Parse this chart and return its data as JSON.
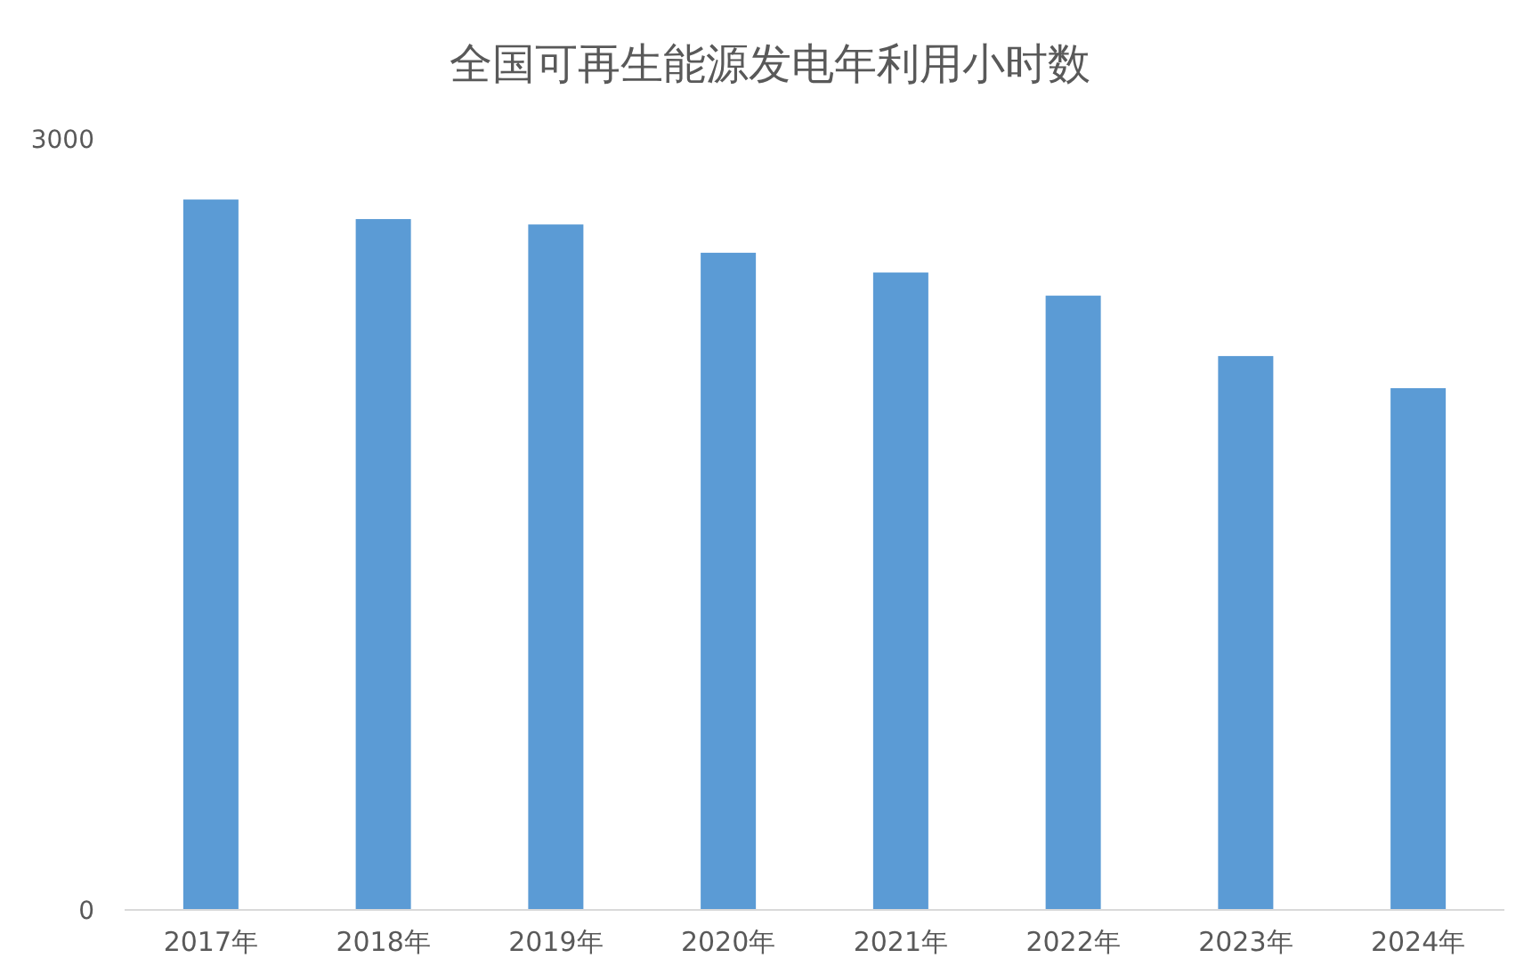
{
  "chart_data": {
    "type": "bar",
    "title": "全国可再生能源发电年利用小时数",
    "categories": [
      "2017年",
      "2018年",
      "2019年",
      "2020年",
      "2021年",
      "2022年",
      "2023年",
      "2024年"
    ],
    "values": [
      2764,
      2688,
      2667,
      2557,
      2480,
      2390,
      2155,
      2030
    ],
    "color": "#5b9bd5",
    "ylim": [
      0,
      3000
    ],
    "yticks": [
      0,
      3000
    ],
    "grid": false
  }
}
